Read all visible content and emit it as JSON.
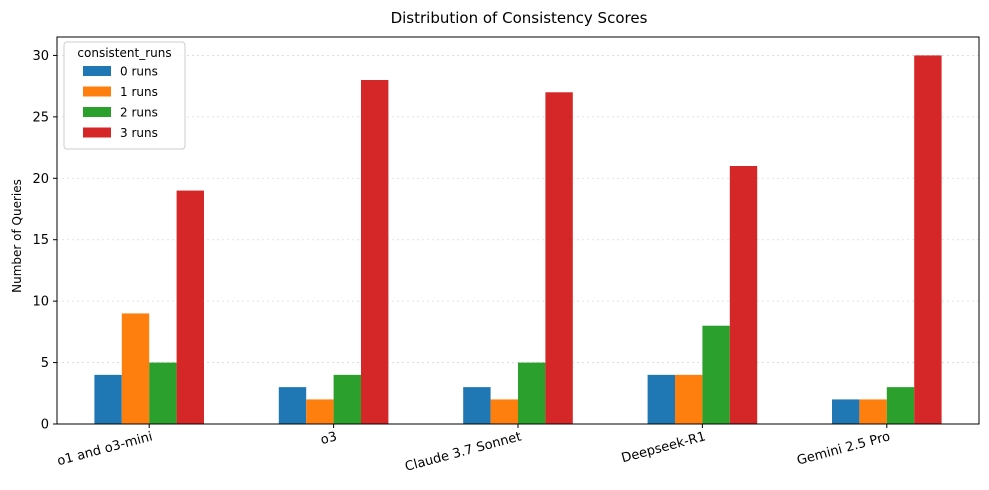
{
  "chart_data": {
    "type": "bar",
    "title": "Distribution of Consistency Scores",
    "xlabel": "",
    "ylabel": "Number of Queries",
    "ylim": [
      0,
      31.5
    ],
    "yticks": [
      0,
      5,
      10,
      15,
      20,
      25,
      30
    ],
    "grid": true,
    "legend_title": "consistent_runs",
    "legend_position": "top-left",
    "categories": [
      "o1 and o3-mini",
      "o3",
      "Claude 3.7 Sonnet",
      "Deepseek-R1",
      "Gemini 2.5 Pro"
    ],
    "series": [
      {
        "name": "0 runs",
        "color": "#1f77b4",
        "values": [
          4,
          3,
          3,
          4,
          2
        ]
      },
      {
        "name": "1 runs",
        "color": "#ff7f0e",
        "values": [
          9,
          2,
          2,
          4,
          2
        ]
      },
      {
        "name": "2 runs",
        "color": "#2ca02c",
        "values": [
          5,
          4,
          5,
          8,
          3
        ]
      },
      {
        "name": "3 runs",
        "color": "#d62728",
        "values": [
          19,
          28,
          27,
          21,
          30
        ]
      }
    ]
  }
}
